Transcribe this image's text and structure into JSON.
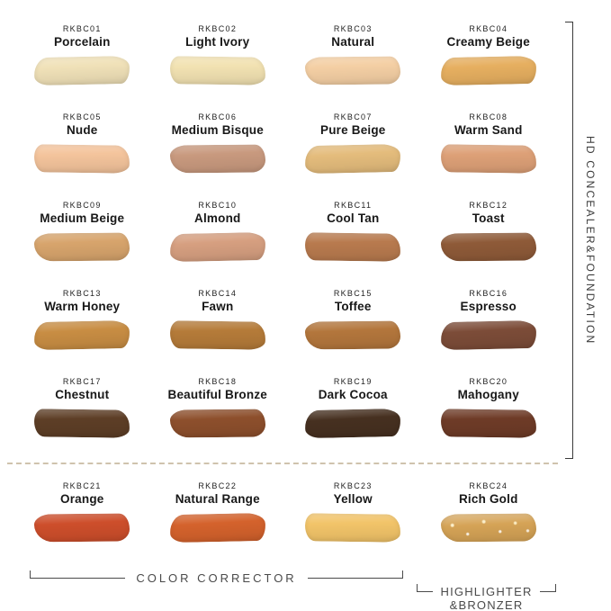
{
  "swatches": [
    {
      "code": "RKBC01",
      "name": "Porcelain",
      "color": "#f0e1b8"
    },
    {
      "code": "RKBC02",
      "name": "Light Ivory",
      "color": "#f2e2b2"
    },
    {
      "code": "RKBC03",
      "name": "Natural",
      "color": "#f4cfa4"
    },
    {
      "code": "RKBC04",
      "name": "Creamy Beige",
      "color": "#e6af60"
    },
    {
      "code": "RKBC05",
      "name": "Nude",
      "color": "#f4c49c"
    },
    {
      "code": "RKBC06",
      "name": "Medium Bisque",
      "color": "#c8997e"
    },
    {
      "code": "RKBC07",
      "name": "Pure Beige",
      "color": "#e4bc7c"
    },
    {
      "code": "RKBC08",
      "name": "Warm Sand",
      "color": "#dda077"
    },
    {
      "code": "RKBC09",
      "name": "Medium Beige",
      "color": "#d7a46c"
    },
    {
      "code": "RKBC10",
      "name": "Almond",
      "color": "#d69f80"
    },
    {
      "code": "RKBC11",
      "name": "Cool Tan",
      "color": "#b87a4e"
    },
    {
      "code": "RKBC12",
      "name": "Toast",
      "color": "#8e5a38"
    },
    {
      "code": "RKBC13",
      "name": "Warm Honey",
      "color": "#c88d43"
    },
    {
      "code": "RKBC14",
      "name": "Fawn",
      "color": "#b57b39"
    },
    {
      "code": "RKBC15",
      "name": "Toffee",
      "color": "#b3763c"
    },
    {
      "code": "RKBC16",
      "name": "Espresso",
      "color": "#7c4c38"
    },
    {
      "code": "RKBC17",
      "name": "Chestnut",
      "color": "#5d3e26"
    },
    {
      "code": "RKBC18",
      "name": "Beautiful Bronze",
      "color": "#8d4f2c"
    },
    {
      "code": "RKBC19",
      "name": "Dark Cocoa",
      "color": "#463020"
    },
    {
      "code": "RKBC20",
      "name": "Mahogany",
      "color": "#6e3b27"
    },
    {
      "code": "RKBC21",
      "name": "Orange",
      "color": "#cd4e2b"
    },
    {
      "code": "RKBC22",
      "name": "Natural Range",
      "color": "#d4622c"
    },
    {
      "code": "RKBC23",
      "name": "Yellow",
      "color": "#f2c469"
    },
    {
      "code": "RKBC24",
      "name": "Rich Gold",
      "color": "#d5a356",
      "shimmer": true
    }
  ],
  "groups": {
    "right_label": "HD CONCEALER&FOUNDATION",
    "color_corrector_label": "COLOR CORRECTOR",
    "highlighter_label_line1": "HIGHLIGHTER",
    "highlighter_label_line2": "&BRONZER"
  }
}
